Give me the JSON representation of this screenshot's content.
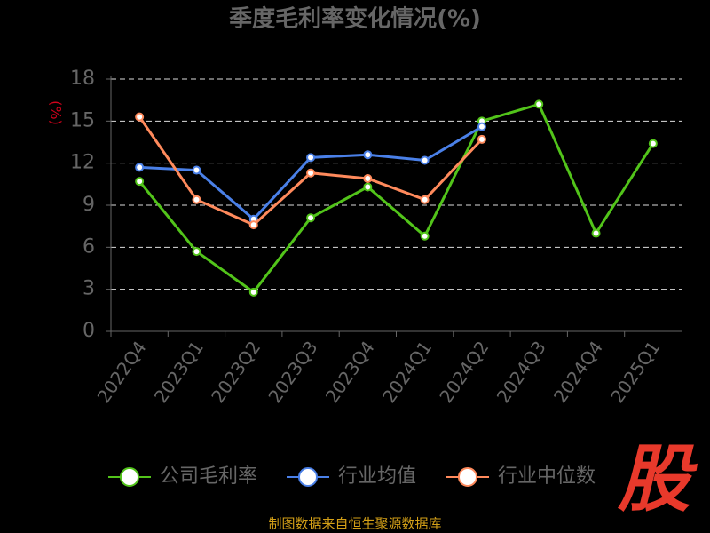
{
  "chart_data": {
    "type": "line",
    "title": "季度毛利率变化情况(%)",
    "y_label": "(%)",
    "categories": [
      "2022Q4",
      "2023Q1",
      "2023Q2",
      "2023Q3",
      "2023Q4",
      "2024Q1",
      "2024Q2",
      "2024Q3",
      "2024Q4",
      "2025Q1"
    ],
    "series": [
      {
        "name": "公司毛利率",
        "color": "#52c41a",
        "values": [
          10.7,
          5.7,
          2.8,
          8.1,
          10.3,
          6.8,
          15.0,
          16.2,
          7.0,
          13.4
        ]
      },
      {
        "name": "行业均值",
        "color": "#4a80e8",
        "values": [
          11.7,
          11.5,
          8.0,
          12.4,
          12.6,
          12.2,
          14.6,
          null,
          null,
          null
        ]
      },
      {
        "name": "行业中位数",
        "color": "#ff8a5c",
        "values": [
          15.3,
          9.4,
          7.6,
          11.3,
          10.9,
          9.4,
          13.7,
          null,
          null,
          null
        ]
      }
    ],
    "ylim": [
      0,
      18
    ],
    "yticks": [
      0,
      3,
      6,
      9,
      12,
      15,
      18
    ],
    "grid": true,
    "source": "制图数据来自恒生聚源数据库",
    "logo": "股"
  }
}
